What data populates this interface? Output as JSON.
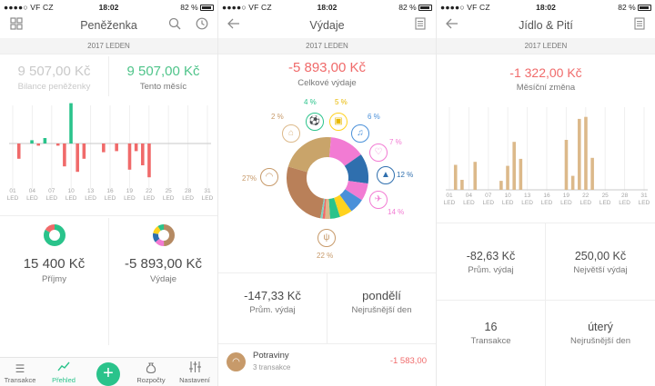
{
  "status": {
    "carrier": "●●●●○ VF CZ",
    "time": "18:02",
    "battery": "82 %"
  },
  "wallet": {
    "title": "Peněženka",
    "period": "2017 LEDEN",
    "balance_value": "9 507,00 Kč",
    "balance_label": "Bilance peněženky",
    "month_value": "9 507,00 Kč",
    "month_label": "Tento měsíc",
    "income_value": "15 400 Kč",
    "income_label": "Příjmy",
    "expense_value": "-5 893,00 Kč",
    "expense_label": "Výdaje",
    "tabs": [
      "Transakce",
      "Přehled",
      "Rozpočty",
      "Nastavení"
    ]
  },
  "expenses": {
    "title": "Výdaje",
    "period": "2017 LEDEN",
    "total_value": "-5 893,00 Kč",
    "total_label": "Celkové výdaje",
    "avg_value": "-147,33 Kč",
    "avg_label": "Prům. výdaj",
    "day_value": "pondělí",
    "day_label": "Nejrušnější den",
    "category_name": "Potraviny",
    "category_count": "3 transakce",
    "category_amount": "-1 583,00",
    "percents": [
      "2 %",
      "4 %",
      "5 %",
      "6 %",
      "7 %",
      "12 %",
      "14 %",
      "22 %",
      "27%"
    ]
  },
  "food": {
    "title": "Jídlo & Pití",
    "period": "2017 LEDEN",
    "change_value": "-1 322,00 Kč",
    "change_label": "Měsíční změna",
    "avg_value": "-82,63 Kč",
    "avg_label": "Prům. výdaj",
    "max_value": "250,00 Kč",
    "max_label": "Největší výdaj",
    "count_value": "16",
    "count_label": "Transakce",
    "day_value": "úterý",
    "day_label": "Nejrušnější den"
  },
  "colors": {
    "green": "#2ac38b",
    "red": "#f06a6a",
    "tan": "#dcb98a"
  },
  "chart_data": [
    {
      "type": "bar",
      "categories": [
        "01",
        "02",
        "03",
        "04",
        "05",
        "06",
        "07",
        "08",
        "09",
        "10",
        "11",
        "12",
        "13",
        "14",
        "15",
        "16",
        "17",
        "18",
        "19",
        "20",
        "21",
        "22",
        "23",
        "24",
        "25",
        "26",
        "27",
        "28",
        "29",
        "30",
        "31"
      ],
      "series": [
        {
          "values": [
            0,
            -14,
            0,
            3,
            -2,
            5,
            0,
            -2,
            -21,
            37,
            -26,
            -14,
            0,
            0,
            -8,
            0,
            -7,
            0,
            -24,
            -7,
            -20,
            -31,
            0,
            0,
            0,
            0,
            0,
            0,
            0,
            0,
            0
          ]
        }
      ],
      "tick_labels": [
        "01",
        "04",
        "07",
        "10",
        "13",
        "16",
        "19",
        "22",
        "25",
        "28",
        "31"
      ],
      "tick_sublabel": "LED"
    },
    {
      "type": "pie",
      "labels": [
        "Potraviny",
        "Doprava",
        "Nákupy",
        "Bydlení",
        "Cestování",
        "Vzdělání",
        "Láska",
        "Ostatní",
        "Zábava",
        "Volný čas",
        "Zdraví"
      ],
      "values": [
        27,
        22,
        14,
        12,
        7,
        6,
        5,
        4,
        2,
        1,
        1
      ]
    },
    {
      "type": "bar",
      "categories": [
        "01",
        "02",
        "03",
        "04",
        "05",
        "06",
        "07",
        "08",
        "09",
        "10",
        "11",
        "12",
        "13",
        "14",
        "15",
        "16",
        "17",
        "18",
        "19",
        "20",
        "21",
        "22",
        "23",
        "24",
        "25",
        "26",
        "27",
        "28",
        "29",
        "30",
        "31"
      ],
      "series": [
        {
          "values": [
            0,
            25,
            10,
            0,
            28,
            0,
            0,
            0,
            9,
            24,
            48,
            31,
            0,
            0,
            0,
            0,
            0,
            0,
            50,
            14,
            71,
            73,
            32,
            0,
            0,
            0,
            0,
            0,
            0,
            0,
            0
          ]
        }
      ],
      "tick_labels": [
        "01",
        "04",
        "07",
        "10",
        "13",
        "16",
        "19",
        "22",
        "25",
        "28",
        "31"
      ],
      "tick_sublabel": "LED"
    }
  ]
}
